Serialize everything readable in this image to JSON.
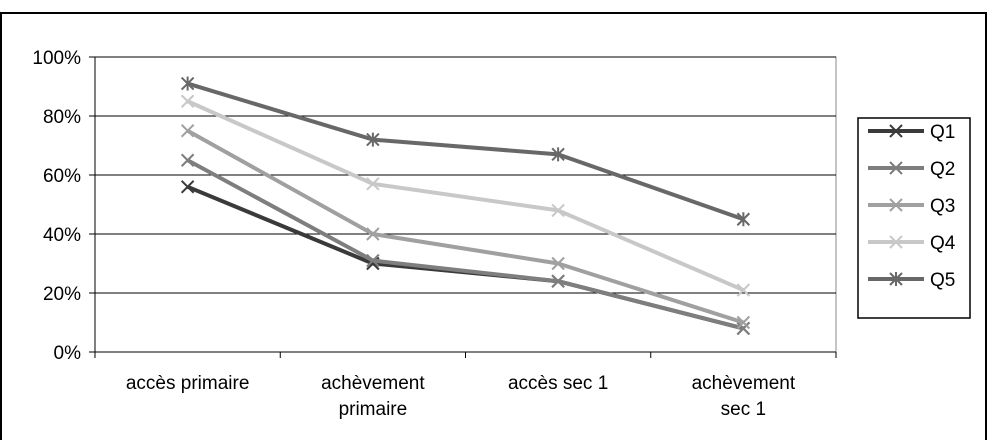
{
  "chart_data": {
    "type": "line",
    "title": "",
    "xlabel": "",
    "ylabel": "",
    "categories": [
      [
        "accès primaire"
      ],
      [
        "achèvement",
        "primaire"
      ],
      [
        "accès sec 1"
      ],
      [
        "achèvement",
        "sec 1"
      ]
    ],
    "yticks": [
      "0%",
      "20%",
      "40%",
      "60%",
      "80%",
      "100%"
    ],
    "ylim": [
      0,
      100
    ],
    "grid": true,
    "legend_position": "right",
    "series": [
      {
        "name": "Q1",
        "color": "#3a3a3a",
        "values": [
          56,
          30,
          24,
          8
        ]
      },
      {
        "name": "Q2",
        "color": "#7e7e7e",
        "values": [
          65,
          31,
          24,
          8
        ]
      },
      {
        "name": "Q3",
        "color": "#a0a0a0",
        "values": [
          75,
          40,
          30,
          10
        ]
      },
      {
        "name": "Q4",
        "color": "#c8c8c8",
        "values": [
          85,
          57,
          48,
          21
        ]
      },
      {
        "name": "Q5",
        "color": "#686868",
        "values": [
          91,
          72,
          67,
          45
        ]
      }
    ]
  }
}
